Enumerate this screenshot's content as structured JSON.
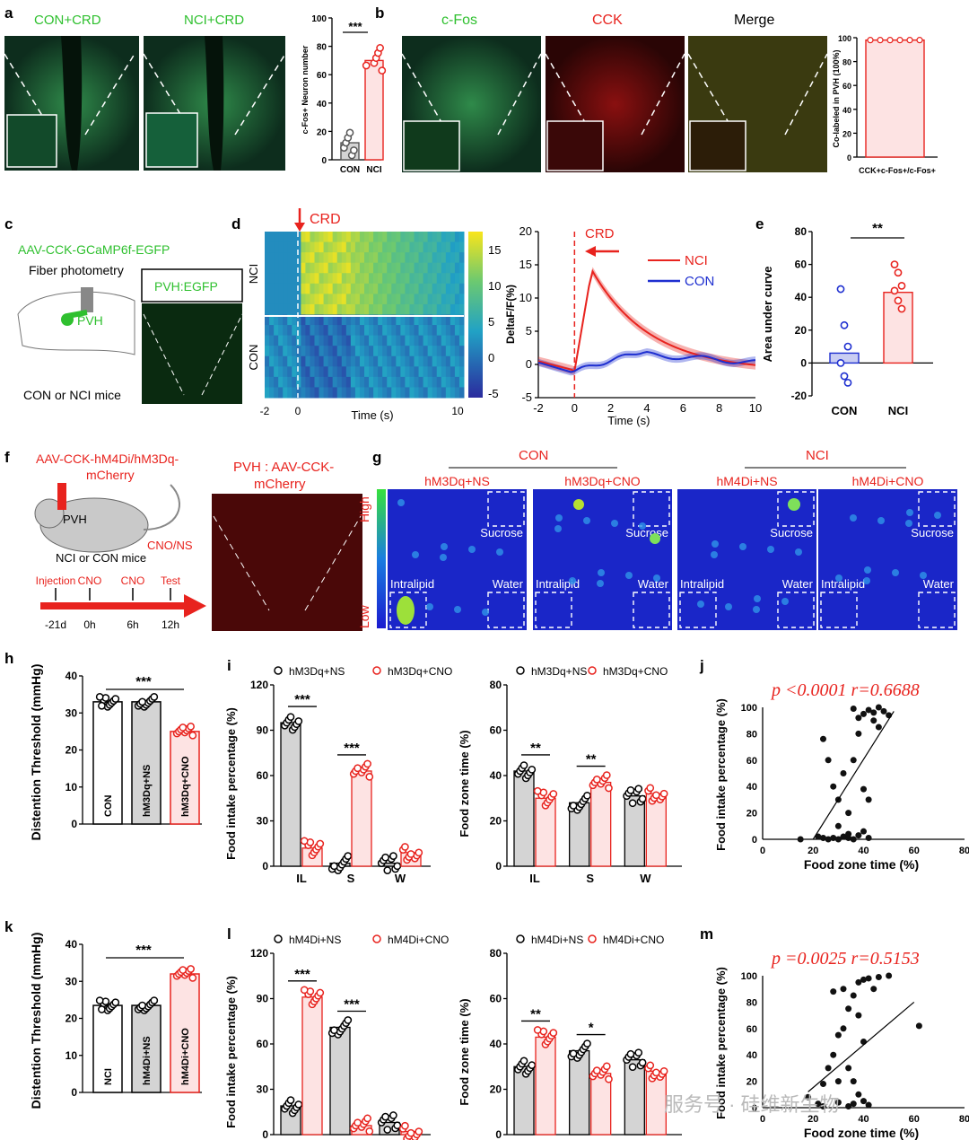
{
  "panels": {
    "a": {
      "letter": "a",
      "img1": "CON+CRD",
      "img2": "NCI+CRD",
      "sig": "***",
      "ylabel": "c-Fos+ Neuron number",
      "yticks": [
        "0",
        "20",
        "40",
        "60",
        "80",
        "100"
      ],
      "cats": [
        "CON",
        "NCI"
      ],
      "values": [
        12,
        70
      ]
    },
    "b": {
      "letter": "b",
      "img1": "c-Fos",
      "img2": "CCK",
      "img3": "Merge",
      "ylabel": "Co-labeled in PVH (100%)",
      "yticks": [
        "0",
        "20",
        "40",
        "60",
        "80",
        "100"
      ],
      "cat": "CCK+c-Fos+/c-Fos+",
      "value": 98
    },
    "c": {
      "letter": "c",
      "virus": "AAV-CCK-GCaMP6f-EGFP",
      "method": "Fiber photometry",
      "region": "PVH",
      "img_label": "PVH:EGFP",
      "mice": "CON or NCI mice"
    },
    "d": {
      "letter": "d",
      "stim": "CRD",
      "row1": "NCI",
      "row2": "CON",
      "hm_xticks": [
        "-2",
        "0",
        "10"
      ],
      "hm_xlabel": "Time (s)",
      "cb_ticks": [
        "15",
        "10",
        "5",
        "0",
        "-5"
      ],
      "lp_ylabel": "DeltaF/F(%)",
      "lp_yticks": [
        "20",
        "15",
        "10",
        "5",
        "0",
        "-5"
      ],
      "lp_xticks": [
        "-2",
        "0",
        "2",
        "4",
        "6",
        "8",
        "10"
      ],
      "lp_xlabel": "Time (s)",
      "legend": [
        "NCI",
        "CON"
      ],
      "lp_stim": "CRD"
    },
    "e": {
      "letter": "e",
      "sig": "**",
      "ylabel": "Area under curve",
      "yticks": [
        "80",
        "60",
        "40",
        "20",
        "0",
        "-20"
      ],
      "cats": [
        "CON",
        "NCI"
      ],
      "values": [
        6,
        43
      ]
    },
    "f": {
      "letter": "f",
      "virus1": "AAV-CCK-hM4Di/hM3Dq-",
      "virus2": "mCherry",
      "region": "PVH",
      "drug": "CNO/NS",
      "mice": "NCI or CON mice",
      "img1": "PVH : AAV-CCK-",
      "img2": "mCherry",
      "timeline": [
        "Injection",
        "CNO",
        "CNO",
        "Test"
      ],
      "times": [
        "-21d",
        "0h",
        "6h",
        "12h"
      ]
    },
    "g": {
      "letter": "g",
      "group1": "CON",
      "group2": "NCI",
      "cond": [
        "hM3Dq+NS",
        "hM3Dq+CNO",
        "hM4Di+NS",
        "hM4Di+CNO"
      ],
      "high": "High",
      "low": "Low",
      "zones": [
        "Sucrose",
        "Intralipid",
        "Water"
      ]
    },
    "h": {
      "letter": "h",
      "sig": "***",
      "ylabel": "Distention Threshold (mmHg)",
      "yticks": [
        "40",
        "30",
        "20",
        "10",
        "0"
      ],
      "bars": [
        "CON",
        "hM3Dq+NS",
        "hM3Dq+CNO"
      ],
      "values": [
        33,
        33,
        25
      ]
    },
    "i": {
      "letter": "i",
      "legend": [
        "hM3Dq+NS",
        "hM3Dq+CNO"
      ],
      "y1": "Food intake percentage (%)",
      "y1ticks": [
        "120",
        "90",
        "60",
        "30",
        "0"
      ],
      "y2": "Food zone time (%)",
      "y2ticks": [
        "80",
        "60",
        "40",
        "20",
        "0"
      ],
      "cats": [
        "IL",
        "S",
        "W"
      ],
      "sig1": [
        "***",
        "***"
      ],
      "sig2": [
        "**",
        "**"
      ],
      "fi_ns": [
        95,
        2,
        2
      ],
      "fi_cno": [
        12,
        63,
        9
      ],
      "fz_ns": [
        42,
        28,
        31
      ],
      "fz_cno": [
        30,
        37,
        32
      ]
    },
    "j": {
      "letter": "j",
      "stat": "p <0.0001  r=0.6688",
      "ylabel": "Food intake percentage (%)",
      "xlabel": "Food zone time (%)",
      "yticks": [
        "100",
        "80",
        "60",
        "40",
        "20",
        "0"
      ],
      "xticks": [
        "0",
        "20",
        "40",
        "60",
        "80"
      ]
    },
    "k": {
      "letter": "k",
      "sig": "***",
      "ylabel": "Distention Threshold (mmHg)",
      "yticks": [
        "40",
        "30",
        "20",
        "10",
        "0"
      ],
      "bars": [
        "NCI",
        "hM4Di+NS",
        "hM4Di+CNO"
      ],
      "values": [
        23.5,
        23.5,
        32
      ]
    },
    "l": {
      "letter": "l",
      "legend": [
        "hM4Di+NS",
        "hM4Di+CNO"
      ],
      "y1": "Food intake percentage (%)",
      "y1ticks": [
        "120",
        "90",
        "60",
        "30",
        "0"
      ],
      "y2": "Food zone time (%)",
      "y2ticks": [
        "80",
        "60",
        "40",
        "20",
        "0"
      ],
      "cats": [
        "IL",
        "S",
        "W"
      ],
      "sig1": [
        "***",
        "***"
      ],
      "sig2": [
        "**",
        "*"
      ],
      "fi_ns": [
        19,
        71,
        8
      ],
      "fi_cno": [
        91,
        6,
        2
      ],
      "fz_ns": [
        30,
        37,
        33
      ],
      "fz_cno": [
        43,
        27,
        28
      ]
    },
    "m": {
      "letter": "m",
      "stat": "p =0.0025  r=0.5153",
      "ylabel": "Food intake percentage (%)",
      "xlabel": "Food zone time (%)",
      "yticks": [
        "100",
        "80",
        "60",
        "40",
        "20",
        "0"
      ],
      "xticks": [
        "0",
        "20",
        "40",
        "60",
        "80"
      ]
    }
  },
  "watermark": "服务号 · 硅维新生物"
}
